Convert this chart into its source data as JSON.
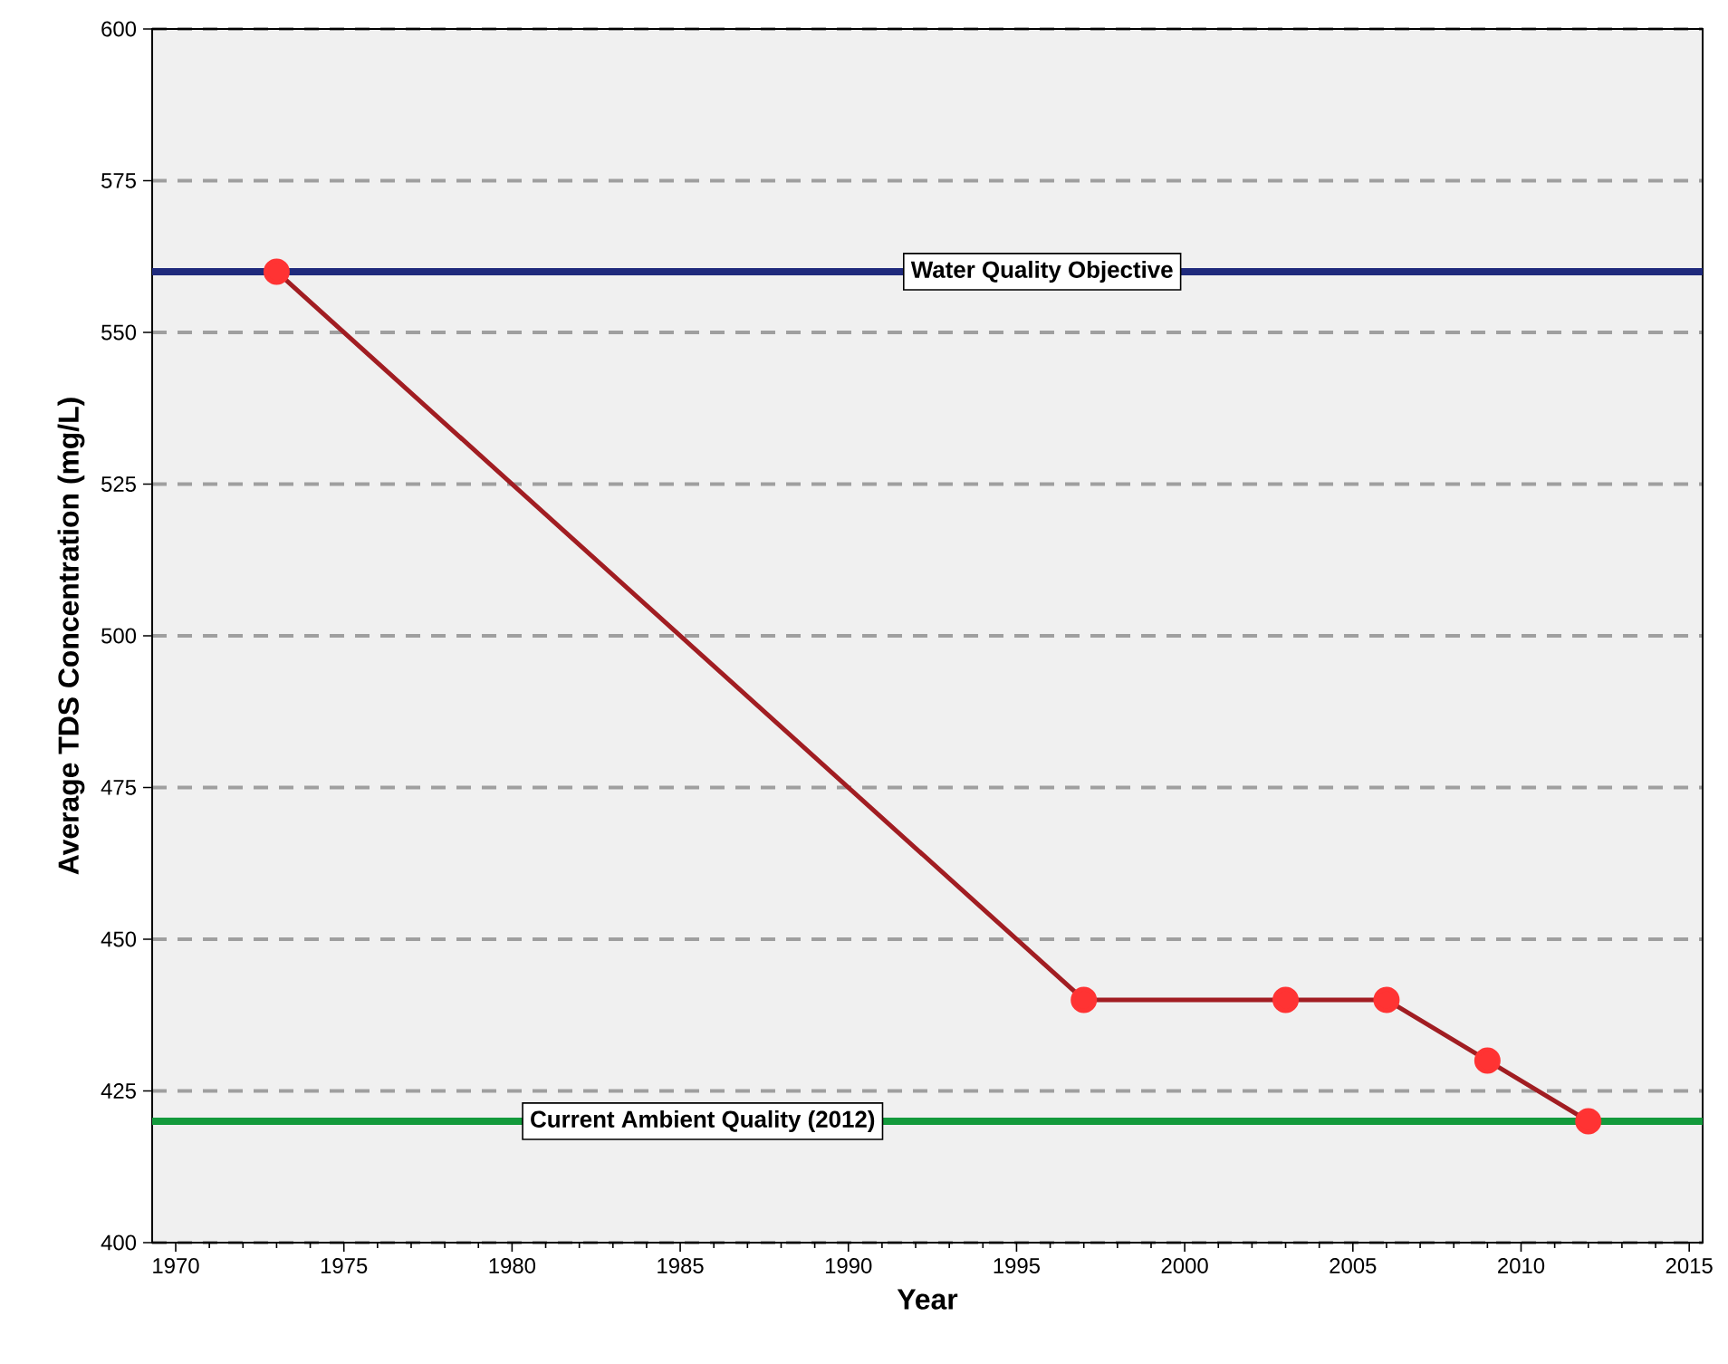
{
  "chart_data": {
    "type": "line",
    "xlabel": "Year",
    "ylabel": "Average TDS Concentration (mg/L)",
    "x": [
      1973,
      1997,
      2003,
      2006,
      2009,
      2012
    ],
    "series": [
      {
        "color": "#a11d22",
        "values": [
          560,
          440,
          440,
          440,
          430,
          420
        ]
      }
    ],
    "marker": "circle",
    "line_style": "solid",
    "grid": "y",
    "xlim": [
      1969.3,
      2015.4
    ],
    "ylim": [
      400,
      600
    ],
    "xticks": [
      1970,
      1975,
      1980,
      1985,
      1990,
      1995,
      2000,
      2005,
      2010,
      2015
    ],
    "yticks": [
      400,
      425,
      450,
      475,
      500,
      525,
      550,
      575,
      600
    ],
    "ref_lines": [
      {
        "axis": "y",
        "value": 560,
        "label": "Water Quality Objective",
        "color": "#1f2a7c"
      },
      {
        "axis": "y",
        "value": 420,
        "label": "Current Ambient Quality (2012)",
        "color": "#139a3c"
      }
    ]
  }
}
